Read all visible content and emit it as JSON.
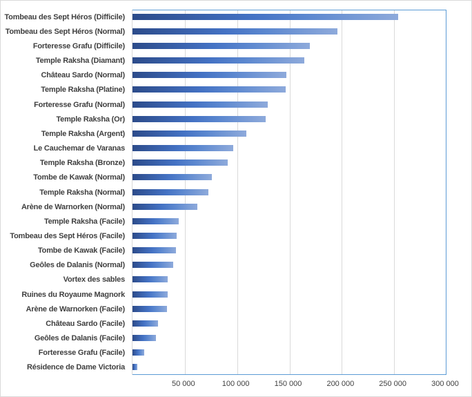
{
  "chart_data": {
    "type": "bar",
    "orientation": "horizontal",
    "title": "",
    "xlabel": "",
    "ylabel": "",
    "xlim": [
      0,
      300000
    ],
    "x_ticks": [
      "50 000",
      "100 000",
      "150 000",
      "200 000",
      "250 000",
      "300 000"
    ],
    "x_tick_values": [
      50000,
      100000,
      150000,
      200000,
      250000,
      300000
    ],
    "grid": true,
    "legend": null,
    "categories": [
      "Tombeau des Sept Héros (Difficile)",
      "Tombeau des Sept Héros (Normal)",
      "Forteresse Grafu (Difficile)",
      "Temple Raksha (Diamant)",
      "Château Sardo (Normal)",
      "Temple Raksha (Platine)",
      "Forteresse Grafu (Normal)",
      "Temple Raksha (Or)",
      "Temple Raksha (Argent)",
      "Le Cauchemar de Varanas",
      "Temple Raksha (Bronze)",
      "Tombe de Kawak (Normal)",
      "Temple Raksha (Normal)",
      "Arène de Warnorken (Normal)",
      "Temple Raksha (Facile)",
      "Tombeau des Sept Héros (Facile)",
      "Tombe de Kawak (Facile)",
      "Geôles de Dalanis (Normal)",
      "Vortex des sables",
      "Ruines du Royaume Magnork",
      "Arène de Warnorken (Facile)",
      "Château Sardo (Facile)",
      "Geôles de Dalanis (Facile)",
      "Forteresse Grafu (Facile)",
      "Résidence de Dame Victoria"
    ],
    "values": [
      254000,
      196000,
      169500,
      164000,
      147000,
      146500,
      129000,
      127500,
      109000,
      96500,
      91300,
      76000,
      72800,
      62200,
      44300,
      42300,
      41700,
      39000,
      33700,
      33700,
      33100,
      24500,
      22500,
      11200,
      4600
    ],
    "colors": {
      "bar_gradient_start": "#2c4b8a",
      "bar_gradient_mid": "#4472c4",
      "bar_gradient_end": "#8eaadb",
      "plot_border": "#5b9bd5",
      "gridline": "#d9d9d9",
      "text": "#404040"
    }
  }
}
